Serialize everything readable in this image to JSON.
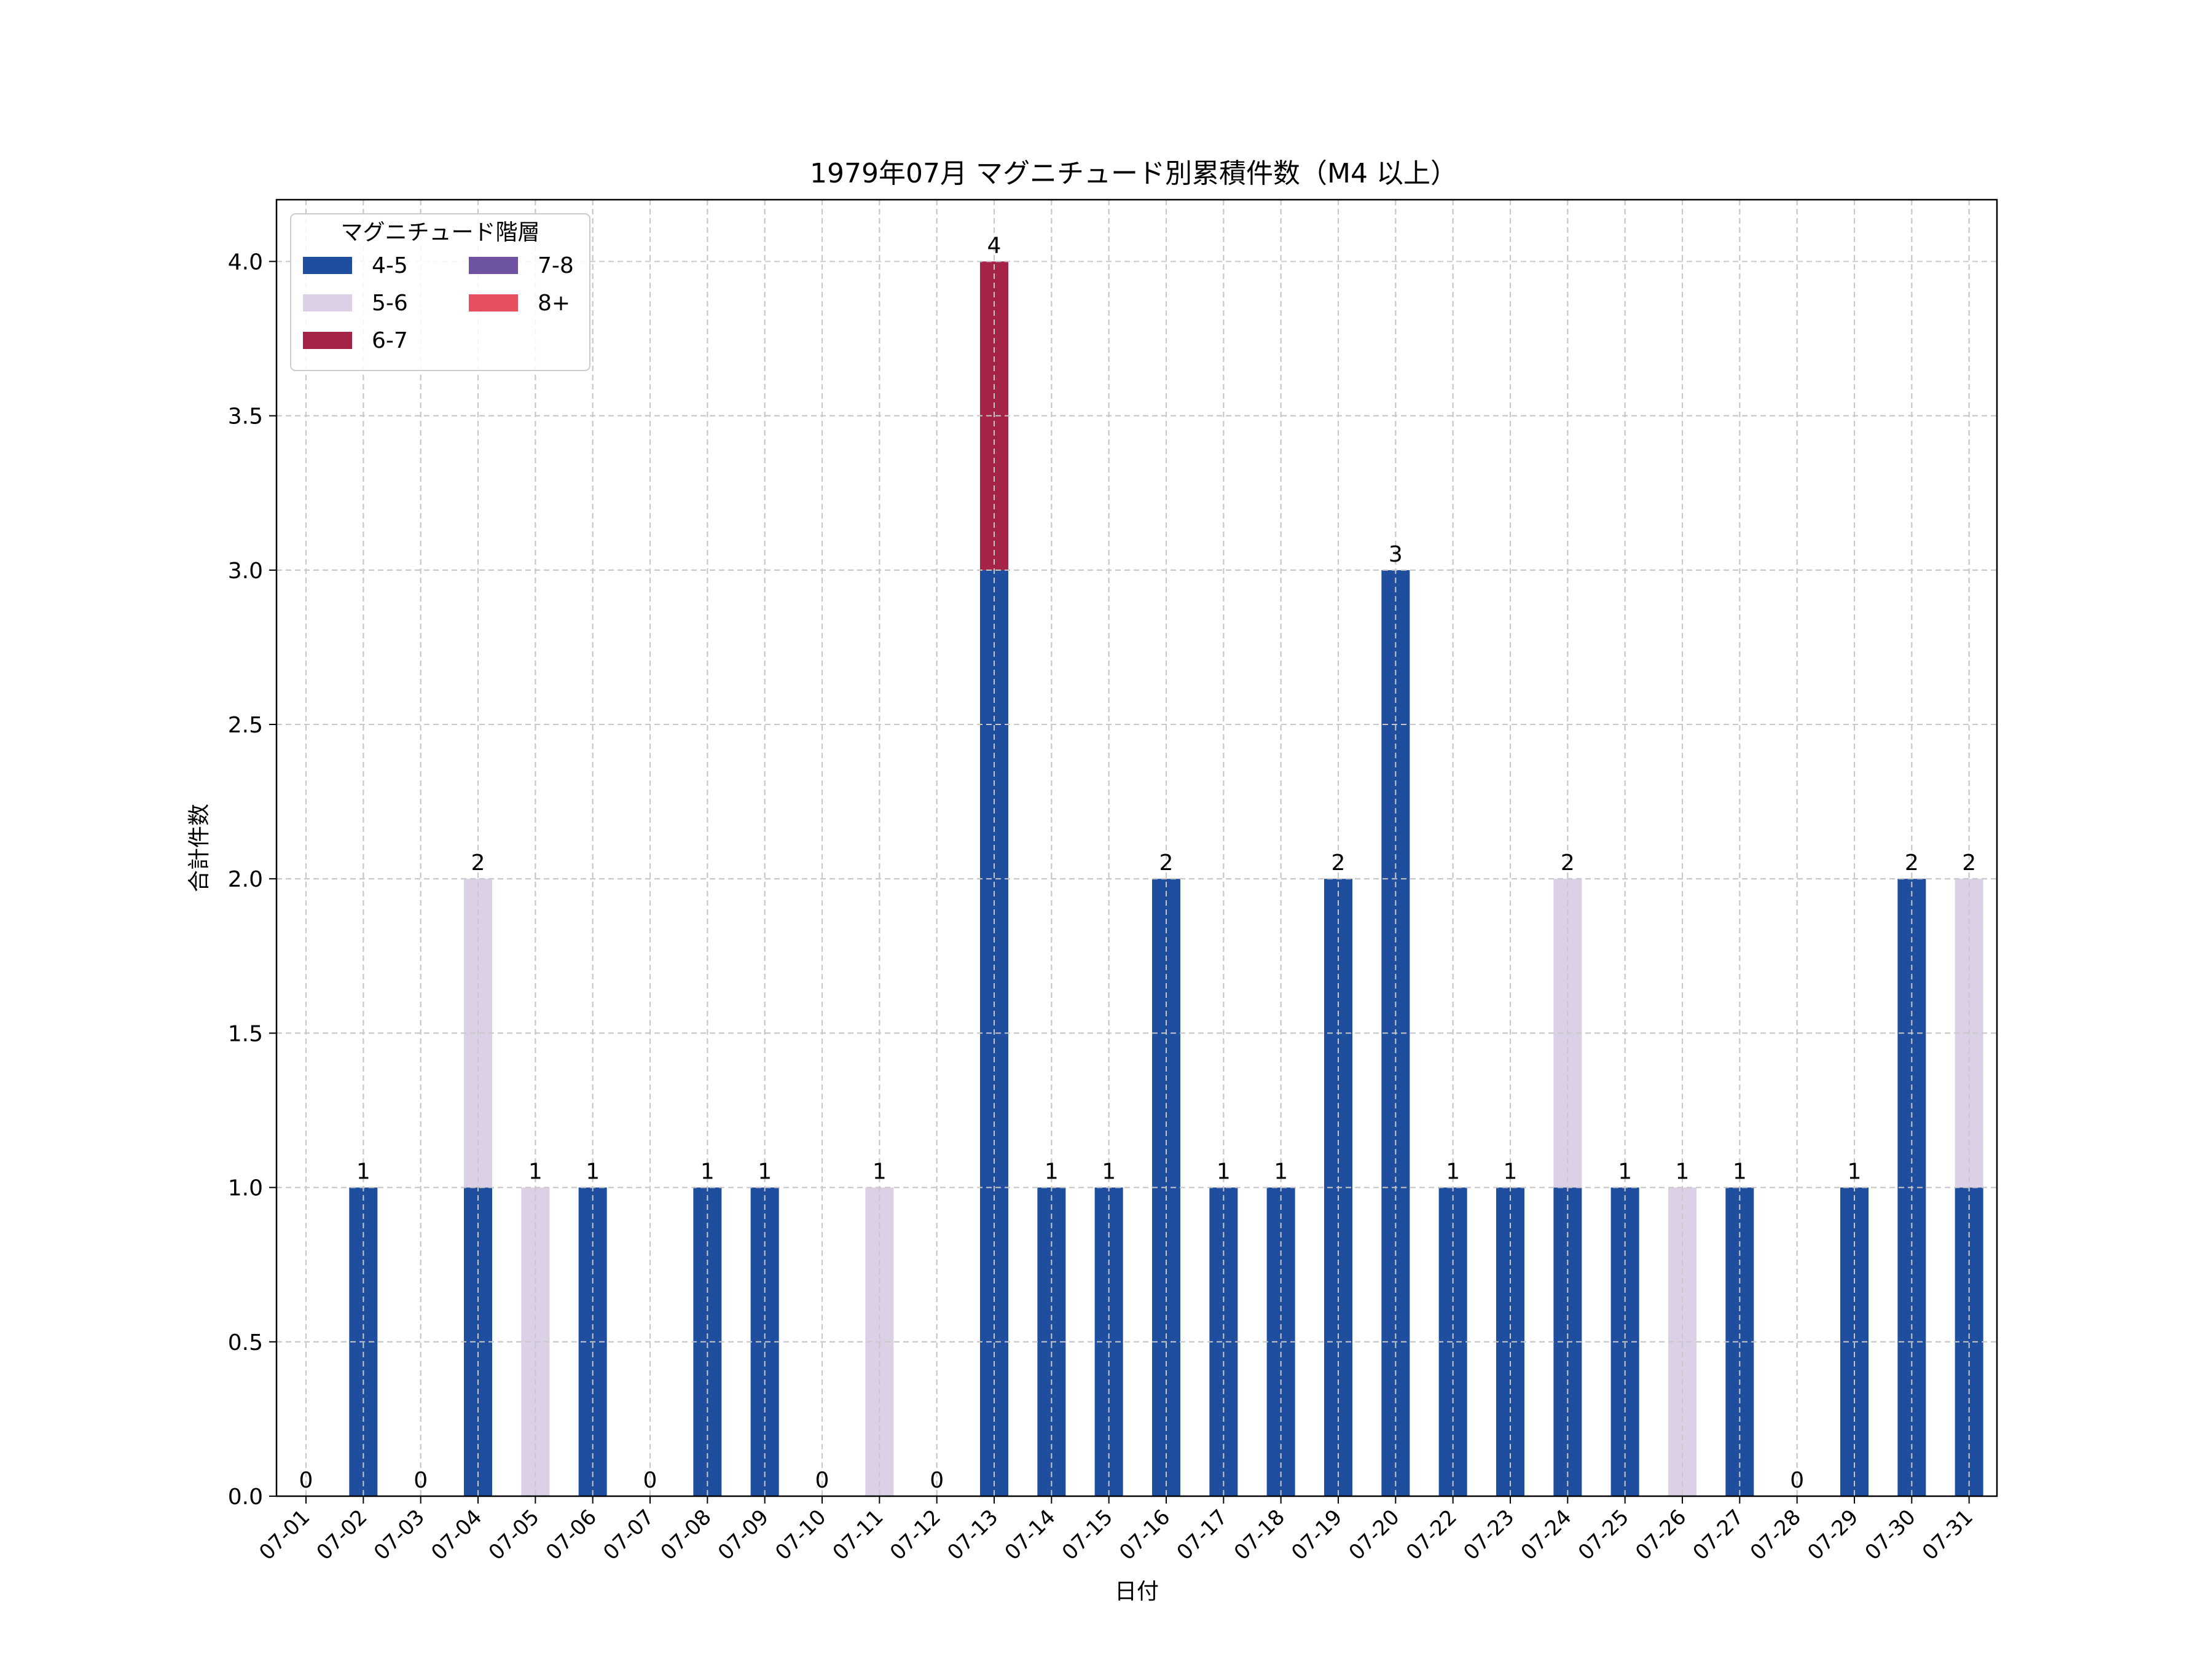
{
  "chart_data": {
    "type": "bar",
    "stacked": true,
    "title": "1979年07月 マグニチュード別累積件数（M4 以上）",
    "xlabel": "日付",
    "ylabel": "合計件数",
    "ylim": [
      0,
      4.2
    ],
    "yticks": [
      "0.0",
      "0.5",
      "1.0",
      "1.5",
      "2.0",
      "2.5",
      "3.0",
      "3.5",
      "4.0"
    ],
    "grid": true,
    "legend": {
      "title": "マグニチュード階層",
      "placement": "top-left"
    },
    "categories": [
      "07-01",
      "07-02",
      "07-03",
      "07-04",
      "07-05",
      "07-06",
      "07-07",
      "07-08",
      "07-09",
      "07-10",
      "07-11",
      "07-12",
      "07-13",
      "07-14",
      "07-15",
      "07-16",
      "07-17",
      "07-18",
      "07-19",
      "07-20",
      "07-22",
      "07-23",
      "07-24",
      "07-25",
      "07-26",
      "07-27",
      "07-28",
      "07-29",
      "07-30",
      "07-31"
    ],
    "series": [
      {
        "name": "4-5",
        "color": "#1f4e9f",
        "values": [
          0,
          1,
          0,
          1,
          0,
          1,
          0,
          1,
          1,
          0,
          0,
          0,
          3,
          1,
          1,
          2,
          1,
          1,
          2,
          3,
          1,
          1,
          1,
          1,
          0,
          1,
          0,
          1,
          2,
          1
        ]
      },
      {
        "name": "5-6",
        "color": "#dcd0e6",
        "values": [
          0,
          0,
          0,
          1,
          1,
          0,
          0,
          0,
          0,
          0,
          1,
          0,
          0,
          0,
          0,
          0,
          0,
          0,
          0,
          0,
          0,
          0,
          1,
          0,
          1,
          0,
          0,
          0,
          0,
          1
        ]
      },
      {
        "name": "6-7",
        "color": "#a52346",
        "values": [
          0,
          0,
          0,
          0,
          0,
          0,
          0,
          0,
          0,
          0,
          0,
          0,
          1,
          0,
          0,
          0,
          0,
          0,
          0,
          0,
          0,
          0,
          0,
          0,
          0,
          0,
          0,
          0,
          0,
          0
        ]
      },
      {
        "name": "7-8",
        "color": "#6f53a3",
        "values": [
          0,
          0,
          0,
          0,
          0,
          0,
          0,
          0,
          0,
          0,
          0,
          0,
          0,
          0,
          0,
          0,
          0,
          0,
          0,
          0,
          0,
          0,
          0,
          0,
          0,
          0,
          0,
          0,
          0,
          0
        ]
      },
      {
        "name": "8+",
        "color": "#e8505f",
        "values": [
          0,
          0,
          0,
          0,
          0,
          0,
          0,
          0,
          0,
          0,
          0,
          0,
          0,
          0,
          0,
          0,
          0,
          0,
          0,
          0,
          0,
          0,
          0,
          0,
          0,
          0,
          0,
          0,
          0,
          0
        ]
      }
    ],
    "totals": [
      0,
      1,
      0,
      2,
      1,
      1,
      0,
      1,
      1,
      0,
      1,
      0,
      4,
      1,
      1,
      2,
      1,
      1,
      2,
      3,
      1,
      1,
      2,
      1,
      1,
      1,
      0,
      1,
      2,
      2
    ]
  }
}
